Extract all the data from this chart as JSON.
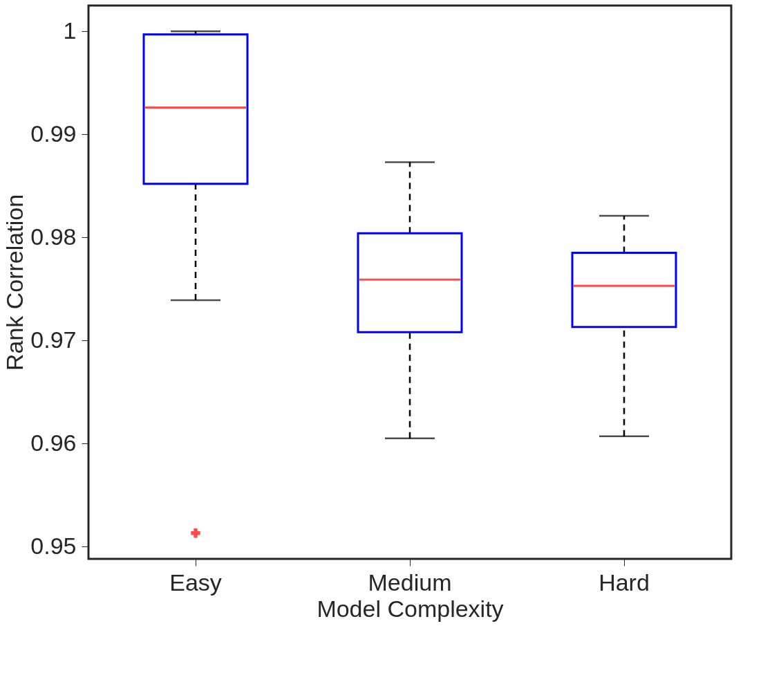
{
  "chart_data": {
    "type": "box",
    "xlabel": "Model Complexity",
    "ylabel": "Rank Correlation",
    "categories": [
      "Easy",
      "Medium",
      "Hard"
    ],
    "series": [
      {
        "color": "#0000ff",
        "boxes": [
          {
            "low": 0.9739,
            "q1": 0.9852,
            "median": 0.9926,
            "q3": 0.9997,
            "high": 1.0,
            "outliers": [
              0.9513
            ]
          },
          {
            "low": 0.9605,
            "q1": 0.9708,
            "median": 0.9759,
            "q3": 0.9804,
            "high": 0.9873
          },
          {
            "low": 0.9607,
            "q1": 0.9713,
            "median": 0.9753,
            "q3": 0.9785,
            "high": 0.9821
          }
        ]
      }
    ],
    "ylim": [
      0.9488,
      1.0025
    ],
    "yticks": [
      0.95,
      0.96,
      0.97,
      0.98,
      0.99,
      1
    ],
    "grid": false
  }
}
